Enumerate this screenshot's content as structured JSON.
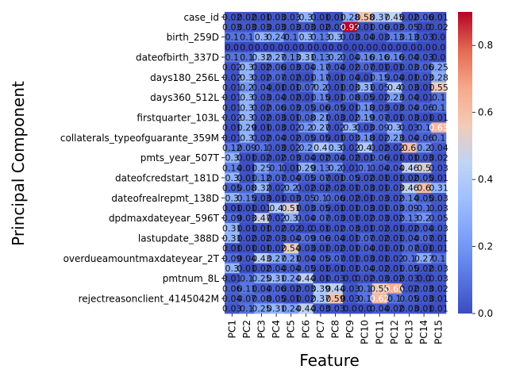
{
  "chart_data": {
    "type": "heatmap",
    "title": "",
    "xlabel": "Feature",
    "ylabel": "Principal Component",
    "x_categories": [
      "PC1",
      "PC2",
      "PC3",
      "PC4",
      "PC5",
      "PC6",
      "PC7",
      "PC8",
      "PC9",
      "PC10",
      "PC11",
      "PC12",
      "PC13",
      "PC14",
      "PC15"
    ],
    "y_tick_labels": [
      "case_id",
      "birth_259D",
      "dateofbirth_337D",
      "days180_256L",
      "days360_512L",
      "firstquarter_103L",
      "collaterals_typeofguarante_359M",
      "pmts_year_507T",
      "dateofcredstart_181D",
      "dateofrealrepmt_138D",
      "dpdmaxdateyear_596T",
      "lastupdate_388D",
      "overdueamountmaxdateyear_2T",
      "pmtnum_8L",
      "rejectreasonclient_4145042M"
    ],
    "row_count": 30,
    "colorbar": {
      "min": 0.0,
      "max": 0.9,
      "ticks": [
        "0.0",
        "0.2",
        "0.4",
        "0.6",
        "0.8"
      ]
    },
    "colormap": "coolwarm",
    "grid": false,
    "legend": "right colorbar",
    "values": [
      [
        0.02,
        0.02,
        0.01,
        0.03,
        0.03,
        0.3,
        0.01,
        0.01,
        0.28,
        0.58,
        0.37,
        0.45,
        0.02,
        0.06,
        0.01
      ],
      [
        0.03,
        0.03,
        0.03,
        0.03,
        0.03,
        0.03,
        0.02,
        0.02,
        0.92,
        0.01,
        0.06,
        0.03,
        0.05,
        0.0,
        0.02
      ],
      [
        0.1,
        0.1,
        0.3,
        0.24,
        0.1,
        0.3,
        0.13,
        0.3,
        0.03,
        0.04,
        0.03,
        0.13,
        0.13,
        0.03,
        0.0
      ],
      [
        0.0,
        0.0,
        0.0,
        0.0,
        0.0,
        0.0,
        0.0,
        0.0,
        0.0,
        0.0,
        0.0,
        0.0,
        0.0,
        0.0,
        0.0
      ],
      [
        0.1,
        0.1,
        0.32,
        0.27,
        0.13,
        0.31,
        0.13,
        0.2,
        0.04,
        0.16,
        0.16,
        0.16,
        0.04,
        0.03,
        0.0
      ],
      [
        0.02,
        0.3,
        0.02,
        0.06,
        0.03,
        0.04,
        0.17,
        0.04,
        0.02,
        0.07,
        0.01,
        0.01,
        0.03,
        0.06,
        0.25
      ],
      [
        0.02,
        0.3,
        0.02,
        0.07,
        0.02,
        0.01,
        0.17,
        0.01,
        0.04,
        0.01,
        0.15,
        0.04,
        0.01,
        0.03,
        0.28
      ],
      [
        0.01,
        0.2,
        0.04,
        0.01,
        0.01,
        0.07,
        0.2,
        0.01,
        0.03,
        0.31,
        0.05,
        0.4,
        0.03,
        0.01,
        0.55
      ],
      [
        0.01,
        0.3,
        0.03,
        0.04,
        0.02,
        0.01,
        0.15,
        0.01,
        0.08,
        0.05,
        0.02,
        0.23,
        0.04,
        0.01,
        0.1
      ],
      [
        0.01,
        0.3,
        0.02,
        0.06,
        0.03,
        0.05,
        0.06,
        0.05,
        0.01,
        0.18,
        0.03,
        0.03,
        0.04,
        0.06,
        0.1
      ],
      [
        0.02,
        0.3,
        0.02,
        0.03,
        0.01,
        0.08,
        0.21,
        0.03,
        0.02,
        0.19,
        0.07,
        0.01,
        0.03,
        0.01,
        0.01
      ],
      [
        0.01,
        0.29,
        0.01,
        0.03,
        0.02,
        0.2,
        0.27,
        0.02,
        0.3,
        0.03,
        0.09,
        0.3,
        0.03,
        0.1,
        0.63
      ],
      [
        0.01,
        0.3,
        0.02,
        0.04,
        0.02,
        0.05,
        0.05,
        0.01,
        0.03,
        0.18,
        0.02,
        0.23,
        0.04,
        0.06,
        0.1
      ],
      [
        0.12,
        0.09,
        0.1,
        0.03,
        0.02,
        0.2,
        0.4,
        0.3,
        0.02,
        0.4,
        0.02,
        0.02,
        0.6,
        0.2,
        0.04
      ],
      [
        0.3,
        0.01,
        0.02,
        0.02,
        0.03,
        0.04,
        0.02,
        0.04,
        0.02,
        0.01,
        0.06,
        0.01,
        0.01,
        0.03,
        0.02
      ],
      [
        0.14,
        0.01,
        0.25,
        0.1,
        0.01,
        0.29,
        0.13,
        0.2,
        0.01,
        0.1,
        0.04,
        0.04,
        0.46,
        0.5,
        0.03
      ],
      [
        0.3,
        0.01,
        0.12,
        0.07,
        0.04,
        0.05,
        0.07,
        0.01,
        0.05,
        0.02,
        0.01,
        0.01,
        0.02,
        0.05,
        0.01
      ],
      [
        0.05,
        0.08,
        0.32,
        0.02,
        0.2,
        0.02,
        0.02,
        0.02,
        0.01,
        0.03,
        0.01,
        0.03,
        0.46,
        0.6,
        0.31
      ],
      [
        0.3,
        0.15,
        0.03,
        0.01,
        0.03,
        0.05,
        0.1,
        0.06,
        0.02,
        0.01,
        0.03,
        0.02,
        0.14,
        0.05,
        0.03
      ],
      [
        0.01,
        0.01,
        0.01,
        0.4,
        0.51,
        0.03,
        0.05,
        0.01,
        0.01,
        0.03,
        0.01,
        0.03,
        0.09,
        0.1,
        0.03
      ],
      [
        0.09,
        0.03,
        0.47,
        0.02,
        0.3,
        0.04,
        0.07,
        0.03,
        0.01,
        0.02,
        0.03,
        0.02,
        0.13,
        0.2,
        0.05
      ],
      [
        0.31,
        0.01,
        0.01,
        0.02,
        0.02,
        0.0,
        0.01,
        0.02,
        0.03,
        0.01,
        0.02,
        0.01,
        0.02,
        0.04,
        0.03
      ],
      [
        0.31,
        0.02,
        0.02,
        0.03,
        0.04,
        0.09,
        0.06,
        0.04,
        0.01,
        0.07,
        0.02,
        0.01,
        0.04,
        0.07,
        0.01
      ],
      [
        0.01,
        0.01,
        0.01,
        0.02,
        0.54,
        0.03,
        0.01,
        0.02,
        0.01,
        0.04,
        0.01,
        0.01,
        0.07,
        0.01,
        0.01
      ],
      [
        0.09,
        0.04,
        0.43,
        0.27,
        0.21,
        0.04,
        0.05,
        0.07,
        0.01,
        0.03,
        0.01,
        0.02,
        0.1,
        0.27,
        0.1
      ],
      [
        0.3,
        0.01,
        0.02,
        0.04,
        0.04,
        0.05,
        0.01,
        0.01,
        0.01,
        0.04,
        0.02,
        0.01,
        0.05,
        0.02,
        0.03
      ],
      [
        0.01,
        0.1,
        0.25,
        0.31,
        0.24,
        0.44,
        0.01,
        0.03,
        0.0,
        0.02,
        0.03,
        0.02,
        0.03,
        0.0,
        0.03
      ],
      [
        0.06,
        0.11,
        0.04,
        0.06,
        0.02,
        0.03,
        0.39,
        0.44,
        0.03,
        0.1,
        0.55,
        0.65,
        0.02,
        0.03,
        0.02
      ],
      [
        0.04,
        0.07,
        0.08,
        0.05,
        0.01,
        0.02,
        0.37,
        0.59,
        0.03,
        0.1,
        0.62,
        0.1,
        0.05,
        0.03,
        0.01
      ],
      [
        0.03,
        0.1,
        0.25,
        0.31,
        0.24,
        0.44,
        0.03,
        0.03,
        0.0,
        0.0,
        0.04,
        0.02,
        0.03,
        0.01,
        0.01
      ]
    ]
  }
}
